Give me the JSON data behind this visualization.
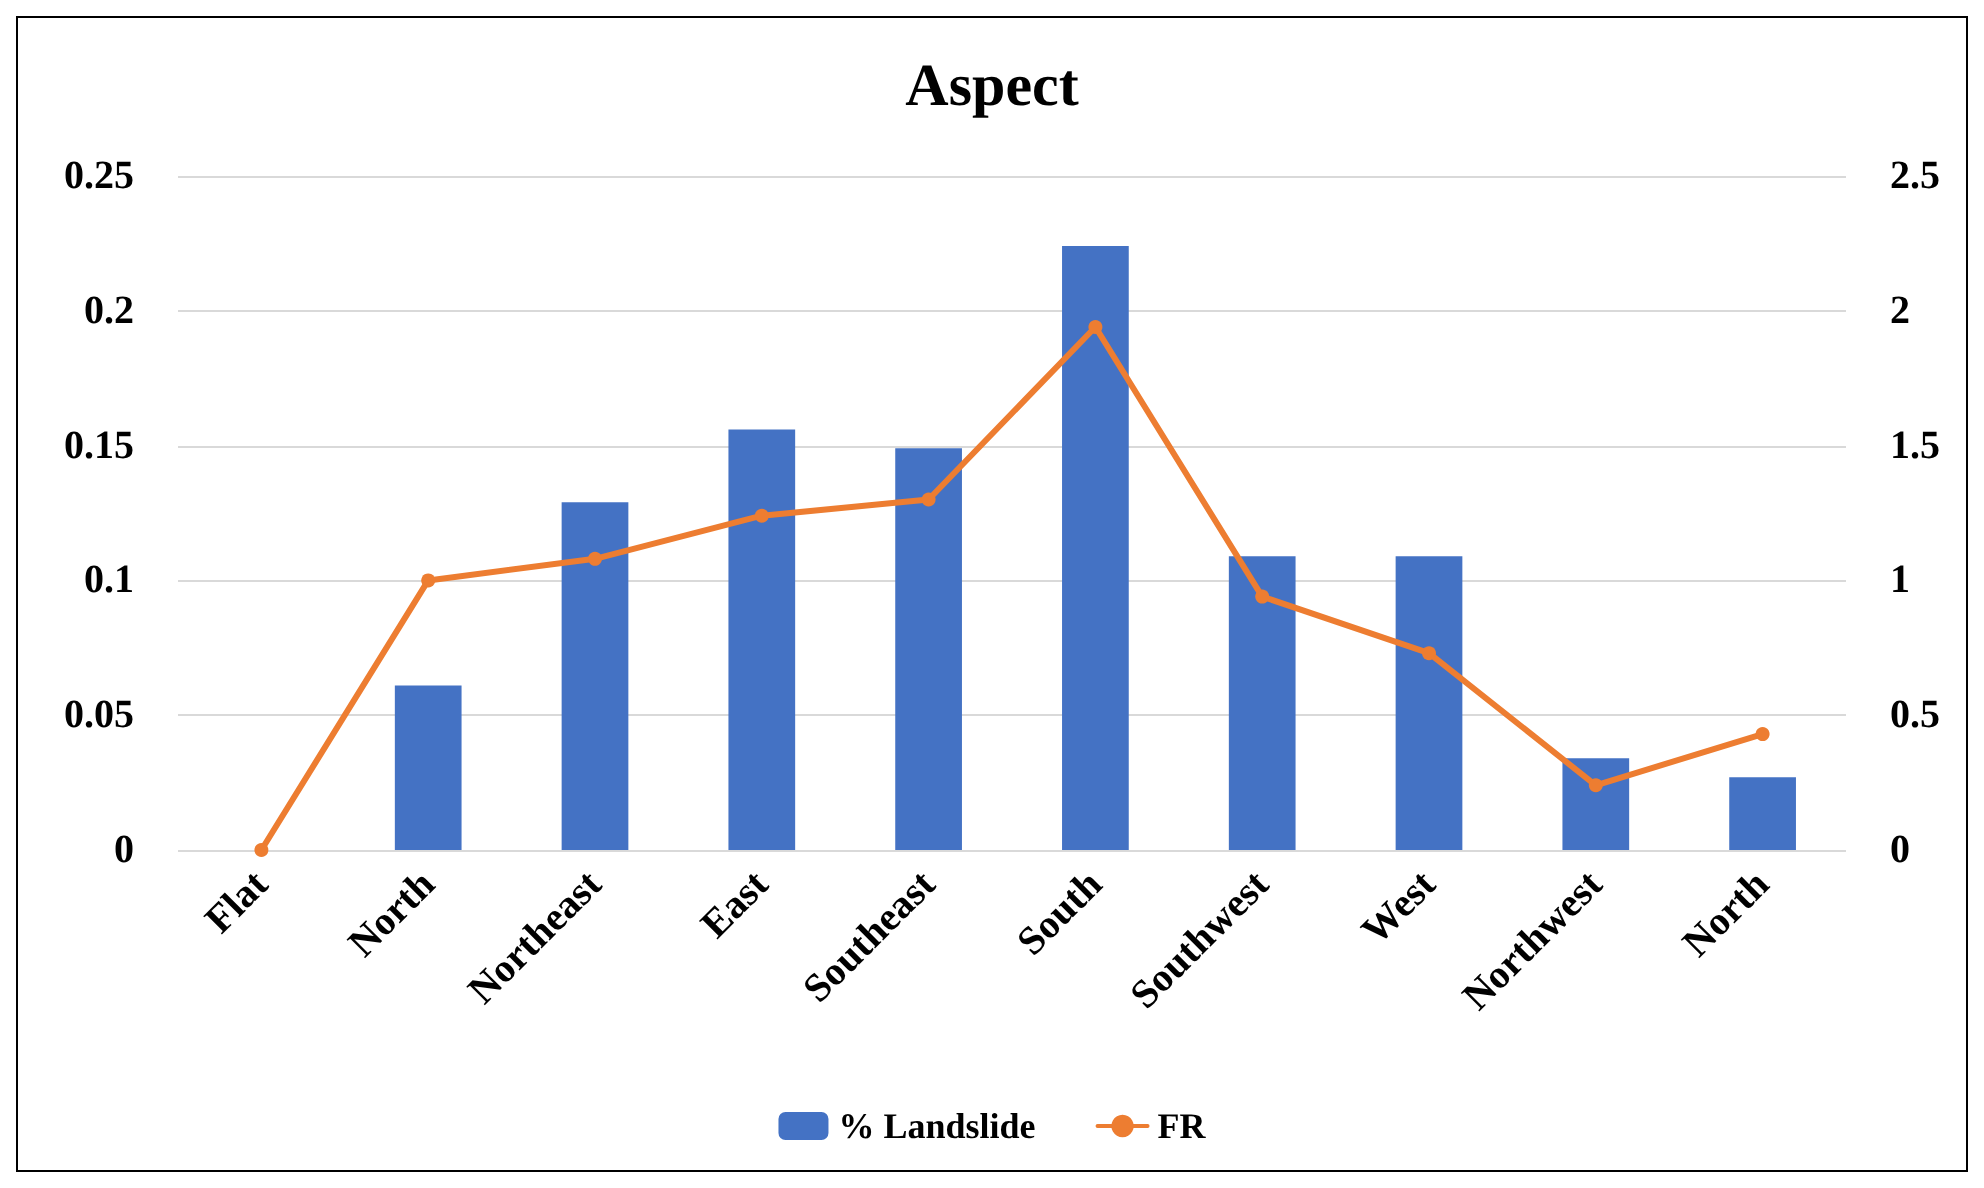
{
  "chart_data": {
    "type": "bar",
    "title": "Aspect",
    "categories": [
      "Flat",
      "North",
      "Northeast",
      "East",
      "Southeast",
      "South",
      "Southwest",
      "West",
      "Northwest",
      "North"
    ],
    "series": [
      {
        "name": "% Landslide",
        "color": "#4472c4",
        "values": [
          0,
          0.061,
          0.129,
          0.156,
          0.149,
          0.224,
          0.109,
          0.109,
          0.034,
          0.027
        ]
      },
      {
        "name": "FR",
        "type": "line",
        "axis": "y2",
        "color": "#ed7d31",
        "values": [
          0,
          1.0,
          1.08,
          1.24,
          1.3,
          1.94,
          0.94,
          0.73,
          0.24,
          0.43
        ]
      }
    ],
    "ylim": [
      0,
      0.25
    ],
    "yticks": [
      0,
      0.05,
      0.1,
      0.15,
      0.2,
      0.25
    ],
    "y2lim": [
      0,
      2.5
    ],
    "y2ticks": [
      0,
      0.5,
      1,
      1.5,
      2,
      2.5
    ],
    "grid": "y",
    "legend": "bottom",
    "marker": "circle",
    "line_style": "solid"
  }
}
